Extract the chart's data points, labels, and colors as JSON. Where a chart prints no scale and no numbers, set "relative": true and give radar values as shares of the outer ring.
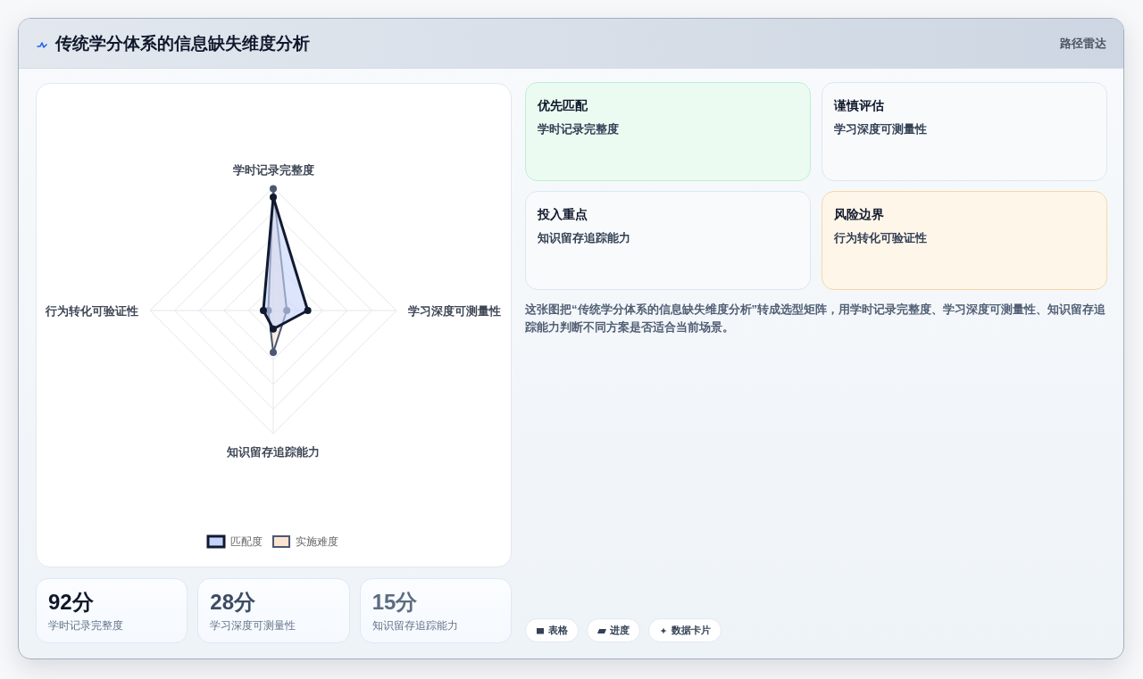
{
  "chart_data": [
    {
      "type": "other",
      "title": "传统学分体系的信息缺失维度分析",
      "subtitle": "路径雷达"
    },
    {
      "type": "radar",
      "categories": [
        "学时记录完整度",
        "学习深度可测量性",
        "知识留存追踪能力",
        "行为转化可验证性"
      ],
      "relative": true,
      "grid": true,
      "legend": "bottom",
      "marker": "circle",
      "series": [
        {
          "name": "匹配度",
          "color": "#111a30",
          "values": [
            0.92,
            0.28,
            0.15,
            0.08
          ]
        },
        {
          "name": "实施难度",
          "color": "#4b5870",
          "values": [
            0.99,
            0.11,
            0.34,
            0.04
          ]
        }
      ]
    },
    {
      "type": "other",
      "annotations": [
        "优先匹配",
        "学时记录完整度",
        "谨慎评估",
        "学习深度可测量性",
        "投入重点",
        "知识留存追踪能力",
        "风险边界",
        "行为转化可验证性",
        "这张图把“传统学分体系的信息缺失维度分析”转成选型矩阵，用学时记录完整度、学习深度可测量性、知识留存追踪能力判断不同方案是否适合当前场景。"
      ]
    },
    {
      "type": "other",
      "annotations": [
        "92分",
        "学时记录完整度",
        "28分",
        "学习深度可测量性",
        "15分",
        "知识留存追踪能力"
      ]
    },
    {
      "type": "other",
      "annotations": [
        "表格",
        "进度",
        "数据卡片"
      ]
    }
  ]
}
